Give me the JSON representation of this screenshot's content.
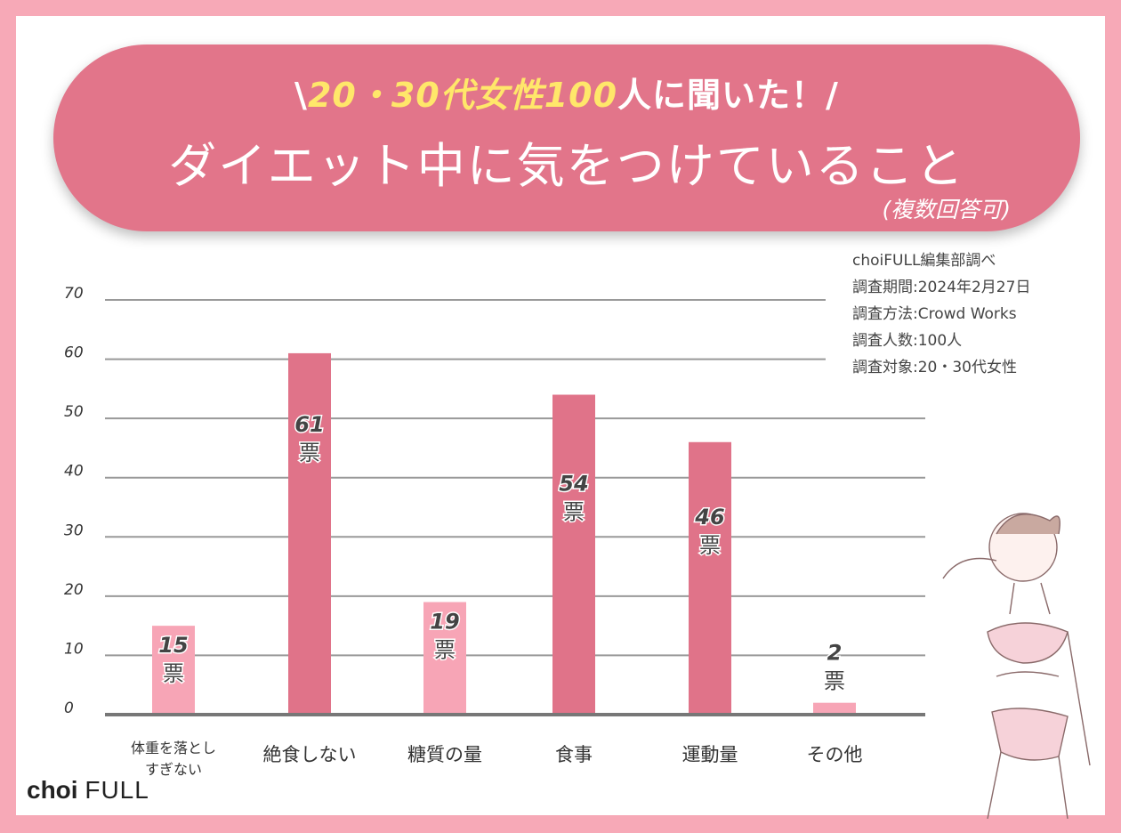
{
  "banner": {
    "sub_prefix": "\\",
    "sub_highlight_1": "20・30",
    "sub_mid": "代女性",
    "sub_highlight_2": "100",
    "sub_suffix": "人に聞いた！/",
    "title": "ダイエット中に気をつけていること",
    "note": "(複数回答可)"
  },
  "survey": {
    "line1": "choiFULL編集部調べ",
    "line2": "調査期間:2024年2月27日",
    "line3": "調査方法:Crowd Works",
    "line4": "調査人数:100人",
    "line5": "調査対象:20・30代女性"
  },
  "logo": {
    "brand": "choi",
    "brand2": "FULL"
  },
  "colors": {
    "dark_bar": "#e07389",
    "light_bar": "#f7a5b6",
    "frame": "#f7a9b7"
  },
  "chart_data": {
    "type": "bar",
    "categories": [
      "体重を落とし\nすぎない",
      "絶食しない",
      "糖質の量",
      "食事",
      "運動量",
      "その他"
    ],
    "values": [
      15,
      61,
      19,
      54,
      46,
      2
    ],
    "bar_shades": [
      "light",
      "dark",
      "light",
      "dark",
      "dark",
      "light"
    ],
    "unit": "票",
    "ylim": [
      0,
      70
    ],
    "yticks": [
      0,
      10,
      20,
      30,
      40,
      50,
      60,
      70
    ],
    "grid": true
  }
}
